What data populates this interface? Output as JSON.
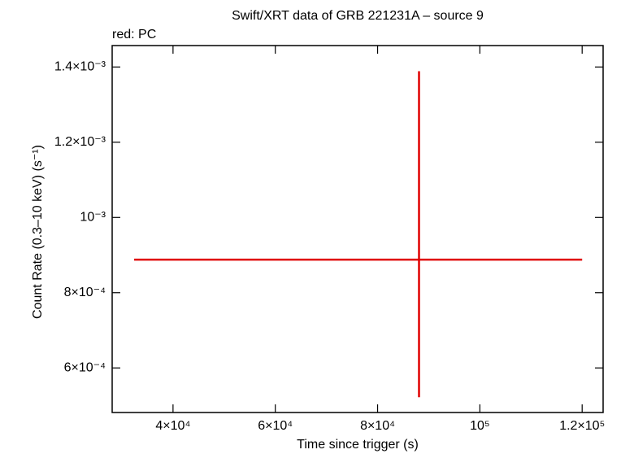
{
  "chart_data": {
    "type": "errorbar",
    "title": "Swift/XRT data of GRB 221231A – source 9",
    "subtitle": "red: PC",
    "x_label": "Time since trigger (s)",
    "y_label": "Count Rate (0.3–10 keV) (s⁻¹)",
    "xlim": [
      28100,
      124100
    ],
    "ylim": [
      0.0004815,
      0.001457
    ],
    "xticks": [
      {
        "value": 40000,
        "label": "4×10⁴"
      },
      {
        "value": 60000,
        "label": "6×10⁴"
      },
      {
        "value": 80000,
        "label": "8×10⁴"
      },
      {
        "value": 100000,
        "label": "10⁵"
      },
      {
        "value": 120000,
        "label": "1.2×10⁵"
      }
    ],
    "yticks": [
      {
        "value": 0.0006,
        "label": "6×10⁻⁴"
      },
      {
        "value": 0.0008,
        "label": "8×10⁻⁴"
      },
      {
        "value": 0.001,
        "label": "10⁻³"
      },
      {
        "value": 0.0012,
        "label": "1.2×10⁻³"
      },
      {
        "value": 0.0014,
        "label": "1.4×10⁻³"
      }
    ],
    "series": [
      {
        "name": "PC",
        "color": "#e00000",
        "x": [
          88100
        ],
        "xerr_minus": [
          55700
        ],
        "xerr_plus": [
          31900
        ],
        "values": [
          0.000888
        ],
        "yerr_minus": [
          0.000366
        ],
        "yerr_plus": [
          0.000501
        ]
      }
    ]
  }
}
